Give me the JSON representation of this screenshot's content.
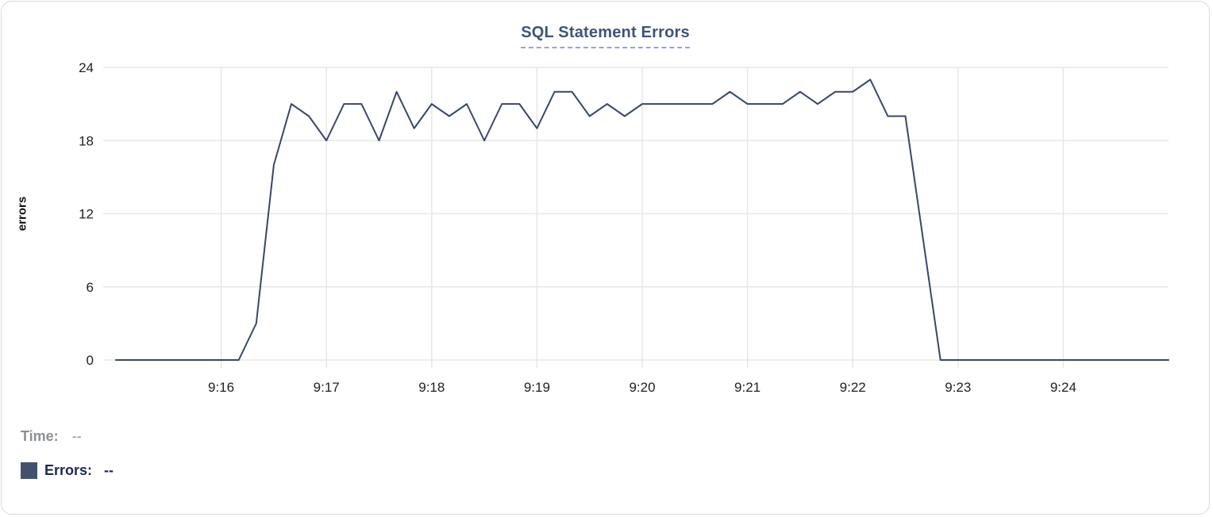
{
  "colors": {
    "line": "#37476a",
    "title": "#3f5378",
    "title_underline": "#93a7cd",
    "grid": "#e7e7e7",
    "tick": "#202124",
    "time_label": "#8b9096",
    "errors_label": "#1b2a52",
    "swatch": "#42526e",
    "card_border": "#d9d9d9"
  },
  "readout": {
    "time": {
      "label": "Time:",
      "value": "--"
    },
    "errors": {
      "label": "Errors:",
      "value": "--"
    }
  },
  "chart_data": {
    "type": "line",
    "title": "SQL Statement Errors",
    "xlabel": "",
    "ylabel": "errors",
    "grid": true,
    "legend_position": "bottom-left",
    "ylim": [
      0,
      24
    ],
    "y_ticks": [
      0,
      6,
      12,
      18,
      24
    ],
    "x_ticks": [
      "9:16",
      "9:17",
      "9:18",
      "9:19",
      "9:20",
      "9:21",
      "9:22",
      "9:23",
      "9:24"
    ],
    "x": [
      "9:15:00",
      "9:15:10",
      "9:15:20",
      "9:15:30",
      "9:15:40",
      "9:15:50",
      "9:16:00",
      "9:16:10",
      "9:16:20",
      "9:16:30",
      "9:16:40",
      "9:16:50",
      "9:17:00",
      "9:17:10",
      "9:17:20",
      "9:17:30",
      "9:17:40",
      "9:17:50",
      "9:18:00",
      "9:18:10",
      "9:18:20",
      "9:18:30",
      "9:18:40",
      "9:18:50",
      "9:19:00",
      "9:19:10",
      "9:19:20",
      "9:19:30",
      "9:19:40",
      "9:19:50",
      "9:20:00",
      "9:20:10",
      "9:20:20",
      "9:20:30",
      "9:20:40",
      "9:20:50",
      "9:21:00",
      "9:21:10",
      "9:21:20",
      "9:21:30",
      "9:21:40",
      "9:21:50",
      "9:22:00",
      "9:22:10",
      "9:22:20",
      "9:22:30",
      "9:22:40",
      "9:22:50",
      "9:23:00",
      "9:23:10",
      "9:23:20",
      "9:23:30",
      "9:23:40",
      "9:23:50",
      "9:24:00",
      "9:24:10",
      "9:24:20",
      "9:24:30",
      "9:24:40",
      "9:24:50",
      "9:25:00"
    ],
    "series": [
      {
        "name": "Errors",
        "values": [
          0,
          0,
          0,
          0,
          0,
          0,
          0,
          0,
          3,
          16,
          21,
          20,
          18,
          21,
          21,
          18,
          22,
          19,
          21,
          20,
          21,
          18,
          21,
          21,
          19,
          22,
          22,
          20,
          21,
          20,
          21,
          21,
          21,
          21,
          21,
          22,
          21,
          21,
          21,
          22,
          21,
          22,
          22,
          23,
          20,
          20,
          10,
          0,
          0,
          0,
          0,
          0,
          0,
          0,
          0,
          0,
          0,
          0,
          0,
          0,
          0
        ]
      }
    ]
  }
}
